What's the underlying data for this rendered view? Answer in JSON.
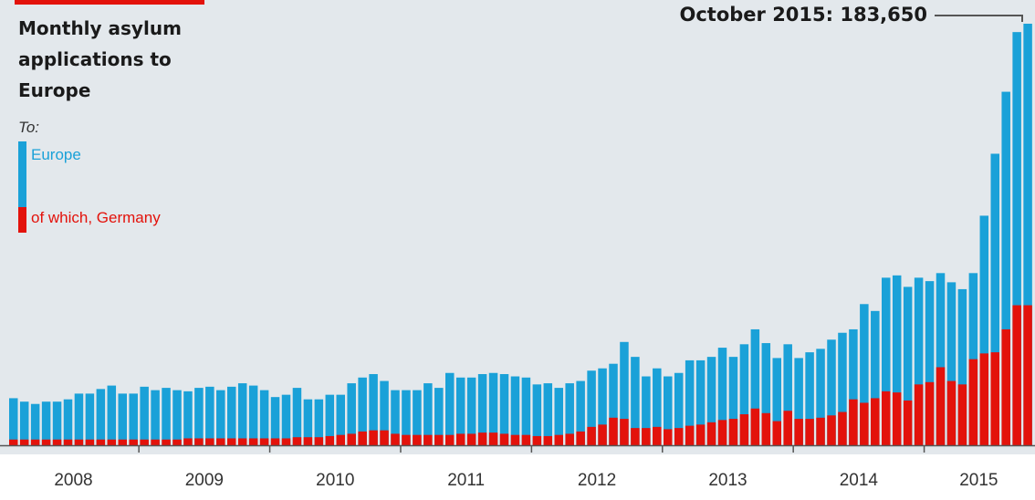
{
  "title_lines": [
    "Monthly asylum",
    "applications to",
    "Europe"
  ],
  "legend": {
    "heading": "To:",
    "europe_label": "Europe",
    "germany_label": "of which, Germany"
  },
  "annotation": {
    "text": "October 2015: 183,650"
  },
  "colors": {
    "background": "#e3e8ec",
    "europe": "#1aa1d8",
    "germany": "#e3120b",
    "accent": "#e3120b",
    "axis": "#555555",
    "text": "#1a1a1a"
  },
  "chart_data": {
    "type": "bar",
    "stacked_overlay": true,
    "title": "Monthly asylum applications to Europe",
    "xlabel": "",
    "ylabel": "",
    "ylim": [
      0,
      190000
    ],
    "grid": false,
    "legend_position": "top-left",
    "x_tick_labels": [
      "2008",
      "2009",
      "2010",
      "2011",
      "2012",
      "2013",
      "2014",
      "2015"
    ],
    "categories": [
      "2008-01",
      "2008-02",
      "2008-03",
      "2008-04",
      "2008-05",
      "2008-06",
      "2008-07",
      "2008-08",
      "2008-09",
      "2008-10",
      "2008-11",
      "2008-12",
      "2009-01",
      "2009-02",
      "2009-03",
      "2009-04",
      "2009-05",
      "2009-06",
      "2009-07",
      "2009-08",
      "2009-09",
      "2009-10",
      "2009-11",
      "2009-12",
      "2010-01",
      "2010-02",
      "2010-03",
      "2010-04",
      "2010-05",
      "2010-06",
      "2010-07",
      "2010-08",
      "2010-09",
      "2010-10",
      "2010-11",
      "2010-12",
      "2011-01",
      "2011-02",
      "2011-03",
      "2011-04",
      "2011-05",
      "2011-06",
      "2011-07",
      "2011-08",
      "2011-09",
      "2011-10",
      "2011-11",
      "2011-12",
      "2012-01",
      "2012-02",
      "2012-03",
      "2012-04",
      "2012-05",
      "2012-06",
      "2012-07",
      "2012-08",
      "2012-09",
      "2012-10",
      "2012-11",
      "2012-12",
      "2013-01",
      "2013-02",
      "2013-03",
      "2013-04",
      "2013-05",
      "2013-06",
      "2013-07",
      "2013-08",
      "2013-09",
      "2013-10",
      "2013-11",
      "2013-12",
      "2014-01",
      "2014-02",
      "2014-03",
      "2014-04",
      "2014-05",
      "2014-06",
      "2014-07",
      "2014-08",
      "2014-09",
      "2014-10",
      "2014-11",
      "2014-12",
      "2015-01",
      "2015-02",
      "2015-03",
      "2015-04",
      "2015-05",
      "2015-06",
      "2015-07",
      "2015-08",
      "2015-09",
      "2015-10"
    ],
    "series": [
      {
        "name": "Europe",
        "values": [
          20500,
          19000,
          18000,
          19000,
          19000,
          20000,
          22500,
          22500,
          24500,
          26000,
          22500,
          22500,
          25500,
          24000,
          25000,
          24000,
          23500,
          25000,
          25500,
          24000,
          25500,
          27000,
          26000,
          24000,
          21000,
          22000,
          25000,
          20000,
          20000,
          22000,
          22000,
          27000,
          29500,
          31000,
          28000,
          24000,
          24000,
          24000,
          27000,
          25000,
          31500,
          29500,
          29500,
          31000,
          31500,
          31000,
          30000,
          29500,
          26500,
          27000,
          25000,
          27000,
          28000,
          32500,
          33500,
          35500,
          45000,
          38500,
          30000,
          33500,
          30000,
          31500,
          37000,
          37000,
          38500,
          42500,
          38500,
          44000,
          50500,
          44500,
          38000,
          44000,
          38000,
          40500,
          42000,
          46000,
          49000,
          50500,
          61500,
          58500,
          73000,
          74000,
          69000,
          73000,
          71500,
          75000,
          71000,
          68000,
          75000,
          100000,
          127000,
          154000,
          180000,
          183650
        ]
      },
      {
        "name": "of which, Germany",
        "values": [
          2500,
          2500,
          2500,
          2500,
          2500,
          2500,
          2500,
          2500,
          2500,
          2500,
          2500,
          2500,
          2500,
          2500,
          2500,
          2500,
          3000,
          3000,
          3000,
          3000,
          3000,
          3000,
          3000,
          3000,
          3000,
          3000,
          3500,
          3500,
          3500,
          4000,
          4500,
          5000,
          6000,
          6500,
          6500,
          5000,
          4500,
          4500,
          4500,
          4500,
          4500,
          5000,
          5000,
          5500,
          5500,
          5000,
          4500,
          4500,
          4000,
          4000,
          4500,
          5000,
          6000,
          8000,
          9000,
          12000,
          11500,
          7500,
          7500,
          8000,
          7000,
          7500,
          8500,
          9000,
          10000,
          11000,
          11500,
          13500,
          16000,
          14000,
          10500,
          15000,
          11500,
          11500,
          12000,
          13000,
          14500,
          20000,
          18500,
          20500,
          23500,
          23000,
          19500,
          26500,
          27500,
          34000,
          28000,
          26500,
          37500,
          40000,
          40500,
          50500,
          61000,
          61000
        ]
      }
    ]
  }
}
